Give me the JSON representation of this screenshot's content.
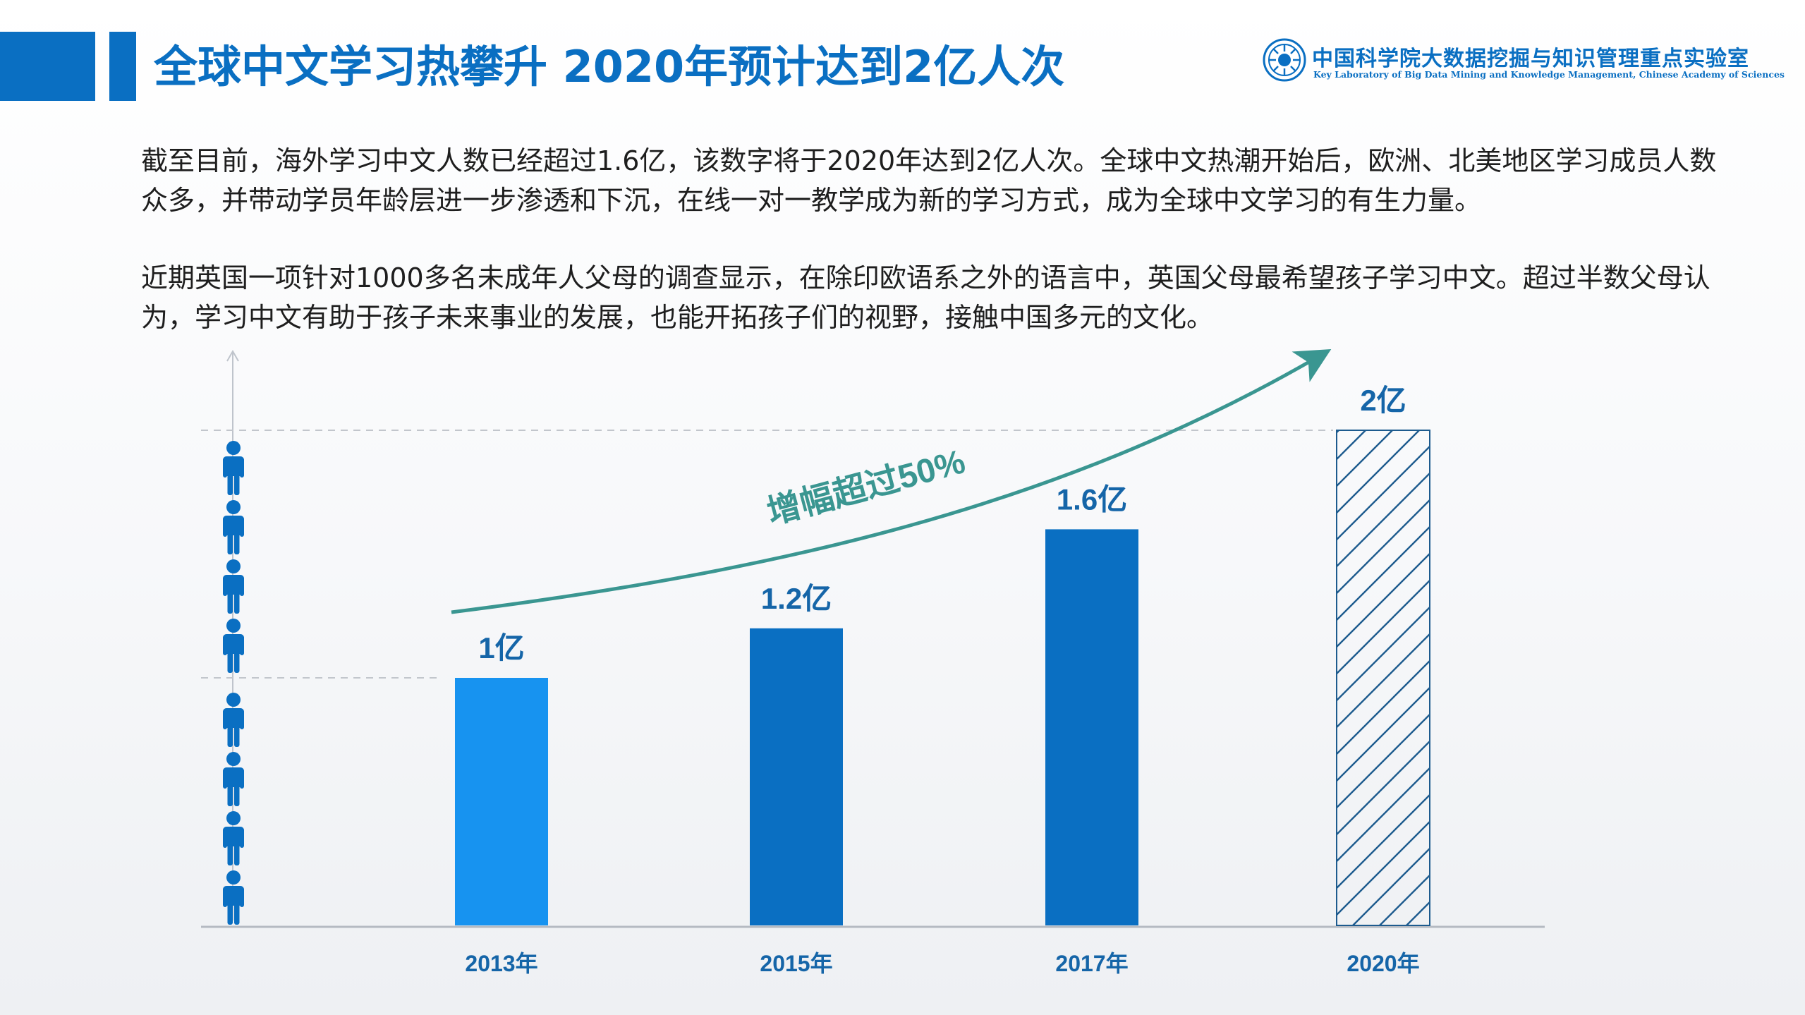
{
  "header": {
    "title": "全球中文学习热攀升 2020年预计达到2亿人次",
    "logo_cn": "中国科学院大数据挖掘与知识管理重点实验室",
    "logo_en": "Key Laboratory of Big Data Mining and Knowledge Management, Chinese Academy of Sciences"
  },
  "paragraphs": {
    "p1": "截至目前，海外学习中文人数已经超过1.6亿，该数字将于2020年达到2亿人次。全球中文热潮开始后，欧洲、北美地区学习成员人数众多，并带动学员年龄层进一步渗透和下沉，在线一对一教学成为新的学习方式，成为全球中文学习的有生力量。",
    "p2": "近期英国一项针对1000多名未成年人父母的调查显示，在除印欧语系之外的语言中，英国父母最希望孩子学习中文。超过半数父母认为，学习中文有助于孩子未来事业的发展，也能开拓孩子们的视野，接触中国多元的文化。"
  },
  "chart_data": {
    "type": "bar",
    "categories": [
      "2013年",
      "2015年",
      "2017年",
      "2020年"
    ],
    "values": [
      1.0,
      1.2,
      1.6,
      2.0
    ],
    "data_labels": [
      "1亿",
      "1.2亿",
      "1.6亿",
      "2亿"
    ],
    "projected": [
      false,
      false,
      false,
      true
    ],
    "ylim": [
      0,
      2.1
    ],
    "reference_lines": [
      1.0,
      2.0
    ],
    "annotation": "增幅超过50%",
    "colors": {
      "bar_2013": "#1793f0",
      "bar": "#0a6fc2",
      "projected_hatch": "#1d5b8e",
      "trend_arrow": "#3a9691",
      "data_label": "#1565a8",
      "tick_label": "#1565a8",
      "person_icon": "#0a6fc2"
    }
  }
}
